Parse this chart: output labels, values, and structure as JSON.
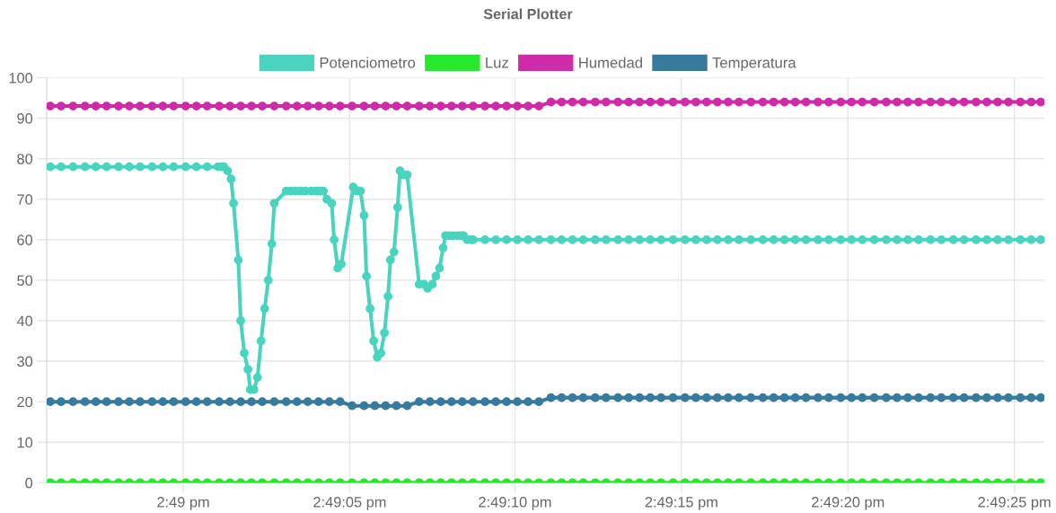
{
  "chart_data": {
    "type": "line",
    "title": "Serial Plotter",
    "x": [
      14.81556,
      14.81565,
      14.81575,
      14.81585,
      14.81594,
      14.81603,
      14.81613,
      14.81622,
      14.81631,
      14.81641,
      14.8165,
      14.81659,
      14.81669,
      14.81678,
      14.81687,
      14.81697,
      14.81706,
      14.81715,
      14.81724,
      14.81733,
      14.81743,
      14.81753,
      14.81762,
      14.81771,
      14.8178,
      14.81789,
      14.81798,
      14.81808,
      14.81818,
      14.81827,
      14.81836,
      14.81845,
      14.81854,
      14.81864,
      14.81873,
      14.81882,
      14.81891,
      14.819,
      14.81909,
      14.81919,
      14.81928,
      14.81937,
      14.81946,
      14.81955,
      14.81964,
      14.81974,
      14.81983,
      14.81992,
      14.82001,
      14.82011,
      14.8202,
      14.8203,
      14.82039,
      14.82048,
      14.82057,
      14.82066,
      14.82076,
      14.82086,
      14.82095,
      14.82104,
      14.82113,
      14.82122,
      14.82131,
      14.82141,
      14.82151,
      14.8216,
      14.82169,
      14.82178,
      14.82187,
      14.82197,
      14.82206,
      14.82216,
      14.82225,
      14.82234,
      14.82244,
      14.82254,
      14.82263,
      14.82272,
      14.82281,
      14.82291,
      14.823,
      14.8231,
      14.82319,
      14.82329,
      14.82338,
      14.82347,
      14.82356,
      14.82366,
      14.82375,
      14.82383
    ],
    "series": [
      {
        "name": "Potenciometro",
        "color": "#48d4bf",
        "x": [
          14.81556,
          14.81565,
          14.81575,
          14.81585,
          14.81594,
          14.81603,
          14.81613,
          14.81622,
          14.81631,
          14.81641,
          14.8165,
          14.81659,
          14.81669,
          14.81678,
          14.81687,
          14.81696,
          14.81699,
          14.81701,
          14.81704,
          14.81707,
          14.81709,
          14.81713,
          14.81715,
          14.81718,
          14.81721,
          14.81723,
          14.81726,
          14.81729,
          14.81732,
          14.81735,
          14.81738,
          14.81741,
          14.81743,
          14.81753,
          14.81757,
          14.81761,
          14.81765,
          14.81769,
          14.81774,
          14.81778,
          14.81781,
          14.81784,
          14.81787,
          14.81791,
          14.81793,
          14.81796,
          14.81799,
          14.81809,
          14.81812,
          14.81815,
          14.81818,
          14.8182,
          14.81823,
          14.81826,
          14.81829,
          14.81832,
          14.81835,
          14.81838,
          14.8184,
          14.81843,
          14.81846,
          14.81848,
          14.81851,
          14.81854,
          14.81864,
          14.81868,
          14.81871,
          14.81875,
          14.81878,
          14.81881,
          14.81884,
          14.81886,
          14.81889,
          14.81892,
          14.81896,
          14.81899,
          14.81901,
          14.81904,
          14.81907,
          14.81909,
          14.81919,
          14.81928,
          14.81937,
          14.81946,
          14.81955,
          14.81964,
          14.81974,
          14.81983,
          14.81992,
          14.82001,
          14.82011,
          14.8202,
          14.8203,
          14.82039,
          14.82048,
          14.82057,
          14.82066,
          14.82076,
          14.82086,
          14.82095,
          14.82104,
          14.82113,
          14.82122,
          14.82131,
          14.82141,
          14.82151,
          14.8216,
          14.82169,
          14.82178,
          14.82187,
          14.82197,
          14.82206,
          14.82216,
          14.82225,
          14.82234,
          14.82244,
          14.82254,
          14.82263,
          14.82272,
          14.82281,
          14.82291,
          14.823,
          14.8231,
          14.82319,
          14.82329,
          14.82338,
          14.82347,
          14.82356,
          14.82366,
          14.82375,
          14.82383
        ],
        "values": [
          78,
          78,
          78,
          78,
          78,
          78,
          78,
          78,
          78,
          78,
          78,
          78,
          78,
          78,
          78,
          78,
          78,
          78,
          77,
          75,
          69,
          55,
          40,
          32,
          28,
          23,
          23,
          26,
          35,
          43,
          50,
          59,
          69,
          72,
          72,
          72,
          72,
          72,
          72,
          72,
          72,
          72,
          70,
          69,
          60,
          53,
          54,
          73,
          72,
          72,
          66,
          51,
          43,
          35,
          31,
          32,
          37,
          46,
          55,
          57,
          68,
          77,
          76,
          76,
          49,
          49,
          48,
          49,
          51,
          53,
          58,
          61,
          61,
          61,
          61,
          61,
          61,
          60,
          60,
          60,
          60,
          60,
          60,
          60,
          60,
          60,
          60,
          60,
          60,
          60,
          60,
          60,
          60,
          60,
          60,
          60,
          60,
          60,
          60,
          60,
          60,
          60,
          60,
          60,
          60,
          60,
          60,
          60,
          60,
          60,
          60,
          60,
          60,
          60,
          60,
          60,
          60,
          60,
          60,
          60,
          60,
          60,
          60,
          60,
          60,
          60,
          60,
          60,
          60,
          60,
          60
        ]
      },
      {
        "name": "Luz",
        "color": "#26e82d",
        "values": [
          0,
          0,
          0,
          0,
          0,
          0,
          0,
          0,
          0,
          0,
          0,
          0,
          0,
          0,
          0,
          0,
          0,
          0,
          0,
          0,
          0,
          0,
          0,
          0,
          0,
          0,
          0,
          0,
          0,
          0,
          0,
          0,
          0,
          0,
          0,
          0,
          0,
          0,
          0,
          0,
          0,
          0,
          0,
          0,
          0,
          0,
          0,
          0,
          0,
          0,
          0,
          0,
          0,
          0,
          0,
          0,
          0,
          0,
          0,
          0,
          0,
          0,
          0,
          0,
          0,
          0,
          0,
          0,
          0,
          0,
          0,
          0,
          0,
          0,
          0,
          0,
          0,
          0,
          0,
          0,
          0,
          0,
          0,
          0,
          0,
          0,
          0,
          0,
          0,
          0
        ]
      },
      {
        "name": "Humedad",
        "color": "#cf2ba8",
        "values": [
          93,
          93,
          93,
          93,
          93,
          93,
          93,
          93,
          93,
          93,
          93,
          93,
          93,
          93,
          93,
          93,
          93,
          93,
          93,
          93,
          93,
          93,
          93,
          93,
          93,
          93,
          93,
          93,
          93,
          93,
          93,
          93,
          93,
          93,
          93,
          93,
          93,
          93,
          93,
          93,
          93,
          93,
          93,
          93,
          93,
          94,
          94,
          94,
          94,
          94,
          94,
          94,
          94,
          94,
          94,
          94,
          94,
          94,
          94,
          94,
          94,
          94,
          94,
          94,
          94,
          94,
          94,
          94,
          94,
          94,
          94,
          94,
          94,
          94,
          94,
          94,
          94,
          94,
          94,
          94,
          94,
          94,
          94,
          94,
          94,
          94,
          94,
          94,
          94,
          94
        ]
      },
      {
        "name": "Temperatura",
        "color": "#367a9c",
        "values": [
          20,
          20,
          20,
          20,
          20,
          20,
          20,
          20,
          20,
          20,
          20,
          20,
          20,
          20,
          20,
          20,
          20,
          20,
          20,
          20,
          20,
          20,
          20,
          20,
          20,
          20,
          20,
          19,
          19,
          19,
          19,
          19,
          19,
          20,
          20,
          20,
          20,
          20,
          20,
          20,
          20,
          20,
          20,
          20,
          20,
          21,
          21,
          21,
          21,
          21,
          21,
          21,
          21,
          21,
          21,
          21,
          21,
          21,
          21,
          21,
          21,
          21,
          21,
          21,
          21,
          21,
          21,
          21,
          21,
          21,
          21,
          21,
          21,
          21,
          21,
          21,
          21,
          21,
          21,
          21,
          21,
          21,
          21,
          21,
          21,
          21,
          21,
          21,
          21,
          21
        ]
      }
    ],
    "xlim": [
      14.81553,
      14.82386
    ],
    "xticks": [
      {
        "value": 14.81667,
        "label": "2:49 pm"
      },
      {
        "value": 14.81806,
        "label": "2:49:05 pm"
      },
      {
        "value": 14.81944,
        "label": "2:49:10 pm"
      },
      {
        "value": 14.82083,
        "label": "2:49:15 pm"
      },
      {
        "value": 14.82222,
        "label": "2:49:20 pm"
      },
      {
        "value": 14.82361,
        "label": "2:49:25 pm"
      }
    ],
    "ylim": [
      0,
      100
    ],
    "yticks": [
      0,
      10,
      20,
      30,
      40,
      50,
      60,
      70,
      80,
      90,
      100
    ],
    "grid": true,
    "legend": "top",
    "marker": "circle",
    "line_style": "solid"
  }
}
